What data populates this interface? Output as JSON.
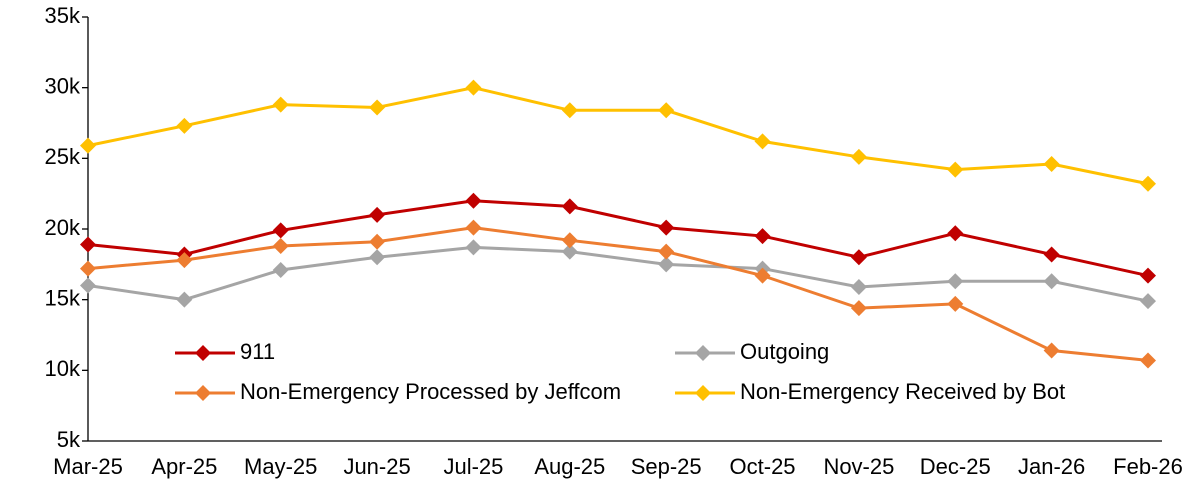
{
  "chart_data": {
    "type": "line",
    "categories": [
      "Mar-25",
      "Apr-25",
      "May-25",
      "Jun-25",
      "Jul-25",
      "Aug-25",
      "Sep-25",
      "Oct-25",
      "Nov-25",
      "Dec-25",
      "Jan-26",
      "Feb-26"
    ],
    "series": [
      {
        "name": "911",
        "color": "#c00000",
        "values": [
          18900,
          18200,
          19900,
          21000,
          22000,
          21600,
          20100,
          19500,
          18000,
          19700,
          18200,
          16700
        ]
      },
      {
        "name": "Outgoing",
        "color": "#a5a5a5",
        "values": [
          16000,
          15000,
          17100,
          18000,
          18700,
          18400,
          17500,
          17200,
          15900,
          16300,
          16300,
          14900
        ]
      },
      {
        "name": "Non-Emergency Processed by Jeffcom",
        "color": "#ed7d31",
        "values": [
          17200,
          17800,
          18800,
          19100,
          20100,
          19200,
          18400,
          16700,
          14400,
          14700,
          11400,
          10700
        ]
      },
      {
        "name": "Non-Emergency Received by Bot",
        "color": "#ffc000",
        "values": [
          25900,
          27300,
          28800,
          28600,
          30000,
          28400,
          28400,
          26200,
          25100,
          24200,
          24600,
          23200
        ]
      }
    ],
    "ylim": [
      5000,
      35000
    ],
    "yticks": [
      {
        "value": 5000,
        "label": "5k"
      },
      {
        "value": 10000,
        "label": "10k"
      },
      {
        "value": 15000,
        "label": "15k"
      },
      {
        "value": 20000,
        "label": "20k"
      },
      {
        "value": 25000,
        "label": "25k"
      },
      {
        "value": 30000,
        "label": "30k"
      },
      {
        "value": 35000,
        "label": "35k"
      }
    ],
    "grid": false,
    "legend": "lower center"
  }
}
